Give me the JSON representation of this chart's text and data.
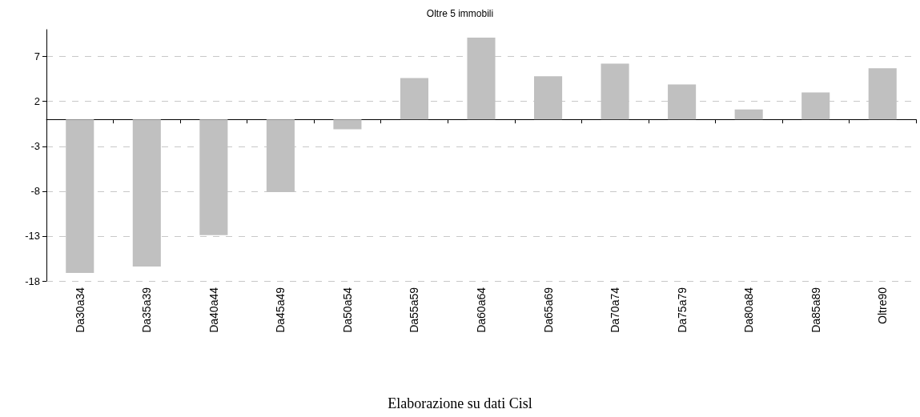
{
  "chart_data": {
    "type": "bar",
    "title": "Oltre 5 immobili",
    "categories": [
      "Da30a34",
      "Da35a39",
      "Da40a44",
      "Da45a49",
      "Da50a54",
      "Da55a59",
      "Da60a64",
      "Da65a69",
      "Da70a74",
      "Da75a79",
      "Da80a84",
      "Da85a89",
      "Oltre90"
    ],
    "values": [
      -17.1,
      -16.4,
      -12.9,
      -8.1,
      -1.1,
      4.6,
      9.1,
      4.8,
      6.2,
      3.9,
      1.1,
      3.0,
      5.7
    ],
    "color": "#c0c0c0",
    "ylim": [
      -18,
      10
    ],
    "yticks": [
      -18,
      -13,
      -8,
      -3,
      2,
      7
    ],
    "grid": "y",
    "annotations": [
      "Elaborazione su dati Cisl"
    ]
  }
}
